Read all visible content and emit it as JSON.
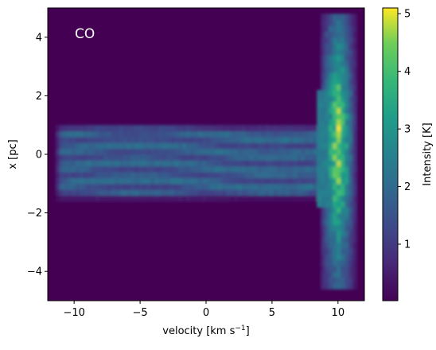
{
  "chart_data": {
    "type": "heatmap",
    "annotation": "CO",
    "xlabel_main": "velocity [km s",
    "xlabel_exp": "−1",
    "xlabel_close": "]",
    "ylabel": "x [pc]",
    "xlim": [
      -12,
      12
    ],
    "ylim": [
      -5,
      5
    ],
    "xticks": [
      -10,
      -5,
      0,
      5,
      10
    ],
    "xtick_labels": [
      "−10",
      "−5",
      "0",
      "5",
      "10"
    ],
    "yticks": [
      -4,
      -2,
      0,
      2,
      4
    ],
    "ytick_labels": [
      "−4",
      "−2",
      "0",
      "2",
      "4"
    ],
    "colorbar": {
      "label": "Intensity [K]",
      "range": [
        0.02,
        5.1
      ],
      "ticks": [
        1,
        2,
        3,
        4,
        5
      ],
      "tick_labels": [
        "1",
        "2",
        "3",
        "4",
        "5"
      ],
      "colormap": "viridis"
    },
    "structure": {
      "band": {
        "x_from": -11.5,
        "x_to": 8.5,
        "y_top": 1.05,
        "y_bottom": -1.55,
        "intensity": 1.9
      },
      "ridge": {
        "x_center": 10.0,
        "half_width": 0.9,
        "y_from": -4.6,
        "y_to": 4.8,
        "peak_intensity": 5.0
      },
      "ridge_peak_y": 0.3,
      "background_intensity": 0.02
    },
    "grid": false
  }
}
